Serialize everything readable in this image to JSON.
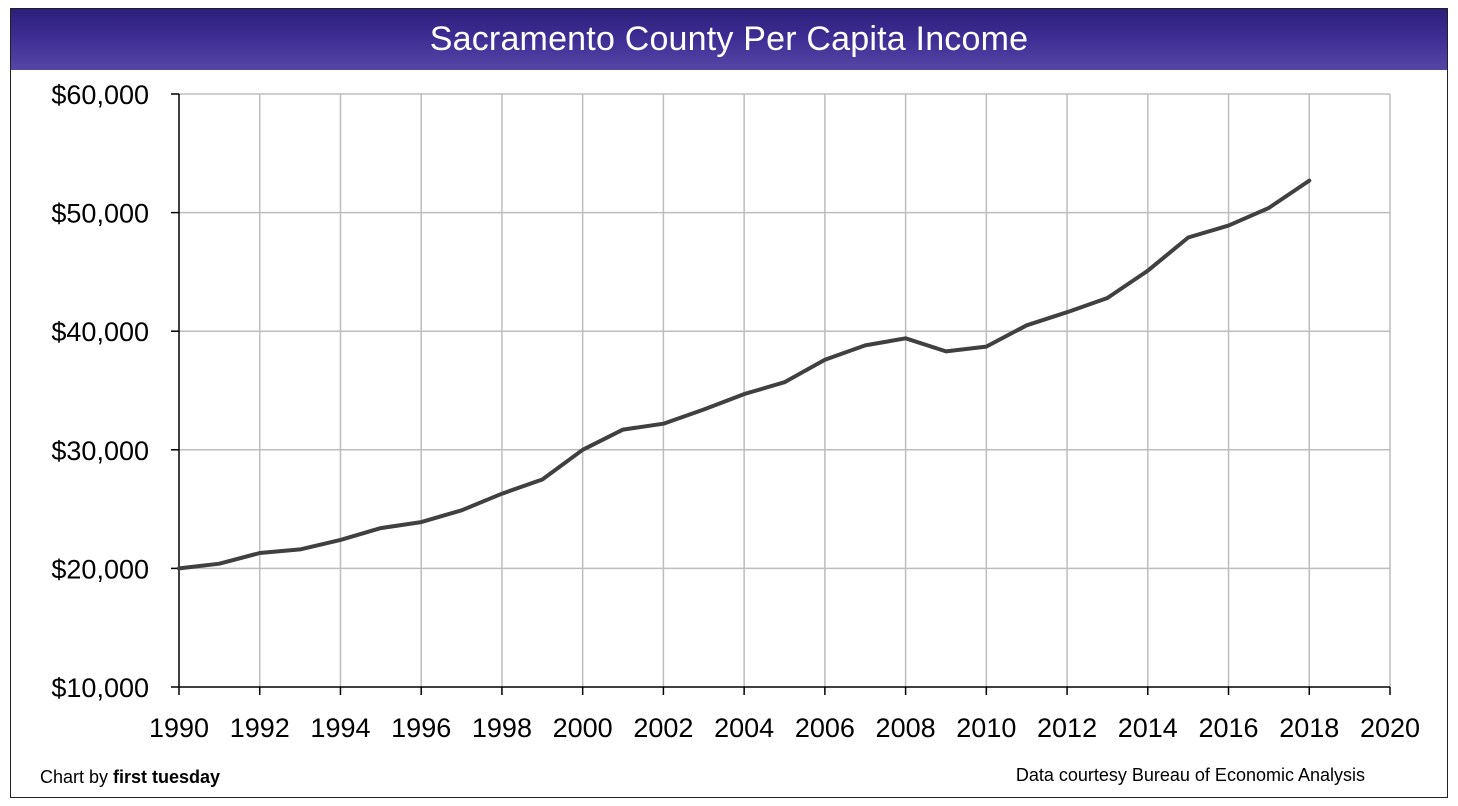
{
  "chart_data": {
    "type": "line",
    "title": "Sacramento County Per Capita Income",
    "xlabel": "",
    "ylabel": "",
    "xlim": [
      1990,
      2020
    ],
    "ylim": [
      10000,
      60000
    ],
    "x_ticks": [
      1990,
      1992,
      1994,
      1996,
      1998,
      2000,
      2002,
      2004,
      2006,
      2008,
      2010,
      2012,
      2014,
      2016,
      2018,
      2020
    ],
    "y_ticks": [
      10000,
      20000,
      30000,
      40000,
      50000,
      60000
    ],
    "y_tick_labels": [
      "$10,000",
      "$20,000",
      "$30,000",
      "$40,000",
      "$50,000",
      "$60,000"
    ],
    "grid": true,
    "legend": "none",
    "series": [
      {
        "color": "#404040",
        "x": [
          1990,
          1991,
          1992,
          1993,
          1994,
          1995,
          1996,
          1997,
          1998,
          1999,
          2000,
          2001,
          2002,
          2003,
          2004,
          2005,
          2006,
          2007,
          2008,
          2009,
          2010,
          2011,
          2012,
          2013,
          2014,
          2015,
          2016,
          2017,
          2018
        ],
        "y": [
          20000,
          20400,
          21300,
          21600,
          22400,
          23400,
          23900,
          24900,
          26300,
          27500,
          30000,
          31700,
          32200,
          33400,
          34700,
          35700,
          37600,
          38800,
          39400,
          38300,
          38700,
          40500,
          41600,
          42800,
          45100,
          47900,
          48900,
          50400,
          52700
        ]
      }
    ]
  },
  "footer": {
    "credit_prefix": "Chart by ",
    "credit_brand": "first tuesday",
    "source": "Data courtesy Bureau of Economic Analysis"
  },
  "colors": {
    "title_bar": "#3d2c92",
    "grid": "#bdbdbd",
    "line": "#404040"
  }
}
